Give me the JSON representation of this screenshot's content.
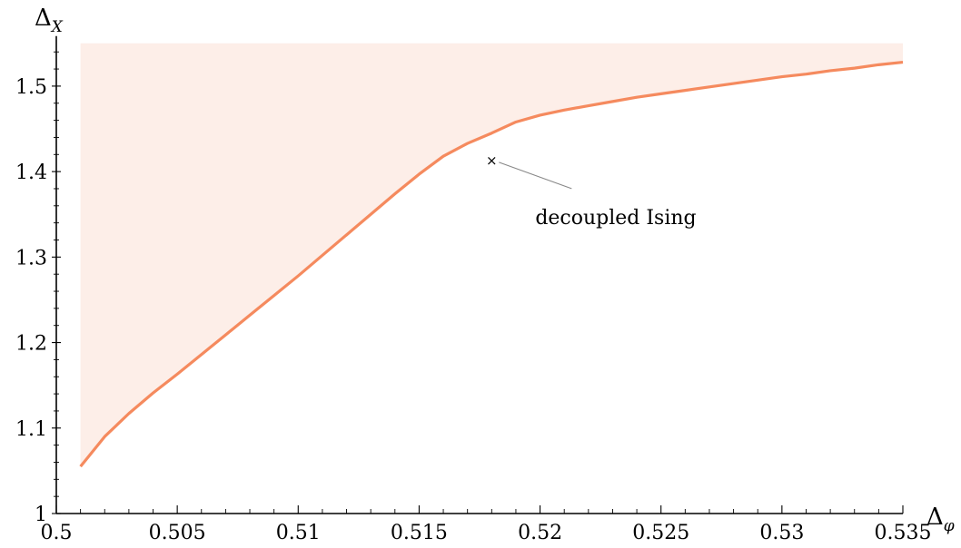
{
  "chart_data": {
    "type": "area",
    "xlabel": "Δ",
    "xlabel_sub": "φ",
    "ylabel": "Δ",
    "ylabel_sub": "X",
    "xlim": [
      0.5,
      0.535
    ],
    "ylim": [
      1.0,
      1.55
    ],
    "x_ticks": [
      "0.5",
      "0.505",
      "0.51",
      "0.515",
      "0.52",
      "0.525",
      "0.53",
      "0.535"
    ],
    "y_ticks": [
      "1",
      "1.1",
      "1.2",
      "1.3",
      "1.4",
      "1.5"
    ],
    "grid": false,
    "series": [
      {
        "fill_color": "#fdeee8",
        "line_color": "#f58a5e",
        "x": [
          0.501,
          0.502,
          0.503,
          0.504,
          0.505,
          0.506,
          0.507,
          0.508,
          0.509,
          0.51,
          0.511,
          0.512,
          0.513,
          0.514,
          0.515,
          0.516,
          0.517,
          0.518,
          0.519,
          0.52,
          0.521,
          0.522,
          0.523,
          0.524,
          0.525,
          0.526,
          0.527,
          0.528,
          0.529,
          0.53,
          0.531,
          0.532,
          0.533,
          0.534,
          0.535
        ],
        "y": [
          1.055,
          1.09,
          1.117,
          1.141,
          1.163,
          1.186,
          1.209,
          1.232,
          1.255,
          1.278,
          1.302,
          1.326,
          1.35,
          1.374,
          1.397,
          1.418,
          1.433,
          1.445,
          1.458,
          1.466,
          1.472,
          1.477,
          1.482,
          1.487,
          1.491,
          1.495,
          1.499,
          1.503,
          1.507,
          1.511,
          1.514,
          1.518,
          1.521,
          1.525,
          1.528
        ]
      }
    ],
    "annotations": [
      {
        "label": "decoupled Ising",
        "marker": "×",
        "x": 0.518,
        "y": 1.413
      }
    ]
  }
}
